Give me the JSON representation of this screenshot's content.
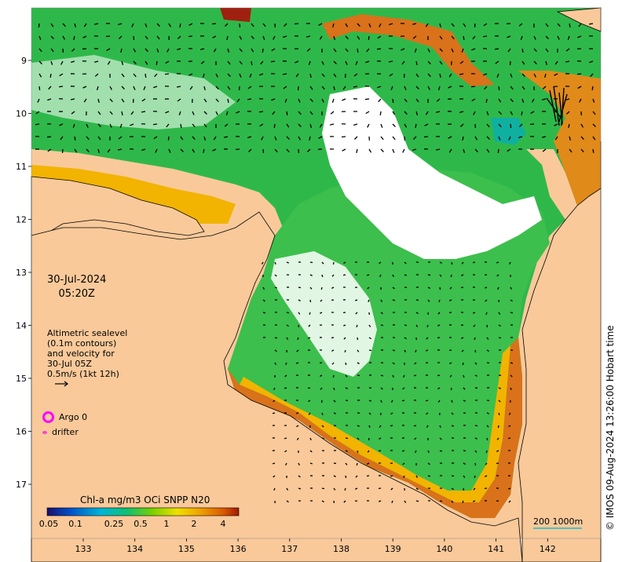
{
  "map": {
    "timestamp_date": "30-Jul-2024",
    "timestamp_time": "05:20Z",
    "lon_ticks": [
      "133",
      "134",
      "135",
      "136",
      "137",
      "138",
      "139",
      "140",
      "141",
      "142"
    ],
    "lat_ticks": [
      "9",
      "10",
      "11",
      "12",
      "13",
      "14",
      "15",
      "16",
      "17"
    ],
    "colors": {
      "land": "#f9c99a",
      "no_data": "#ffffff",
      "high_chl": "#d9721a",
      "mid_chl": "#f2b400",
      "low_chl": "#2fb84a",
      "very_low_chl": "#0fb0a0"
    }
  },
  "velocity_legend": {
    "line1": "Altimetric sealevel",
    "line2": "(0.1m contours)",
    "line3": "and velocity for",
    "line4": "30-Jul 05Z",
    "line5": "0.5m/s (1kt 12h)"
  },
  "markers": {
    "argo_label": "Argo 0",
    "drifter_label": "drifter",
    "argo_color": "#ff00ff",
    "drifter_color": "#ff3fd0"
  },
  "colorbar": {
    "title": "Chl-a mg/m3 OCi SNPP N20",
    "tick_labels": [
      "0.05",
      "0.1",
      "0.25",
      "0.5",
      "1",
      "2",
      "4"
    ],
    "colors": [
      "#1a0f6b",
      "#0050c8",
      "#00b4d8",
      "#10c070",
      "#7ad000",
      "#f0e000",
      "#f0a000",
      "#d85a00",
      "#a01800"
    ]
  },
  "scale": {
    "label": "200  1000m"
  },
  "copyright": "© IMOS 09-Aug-2024 13:26:00 Hobart time"
}
